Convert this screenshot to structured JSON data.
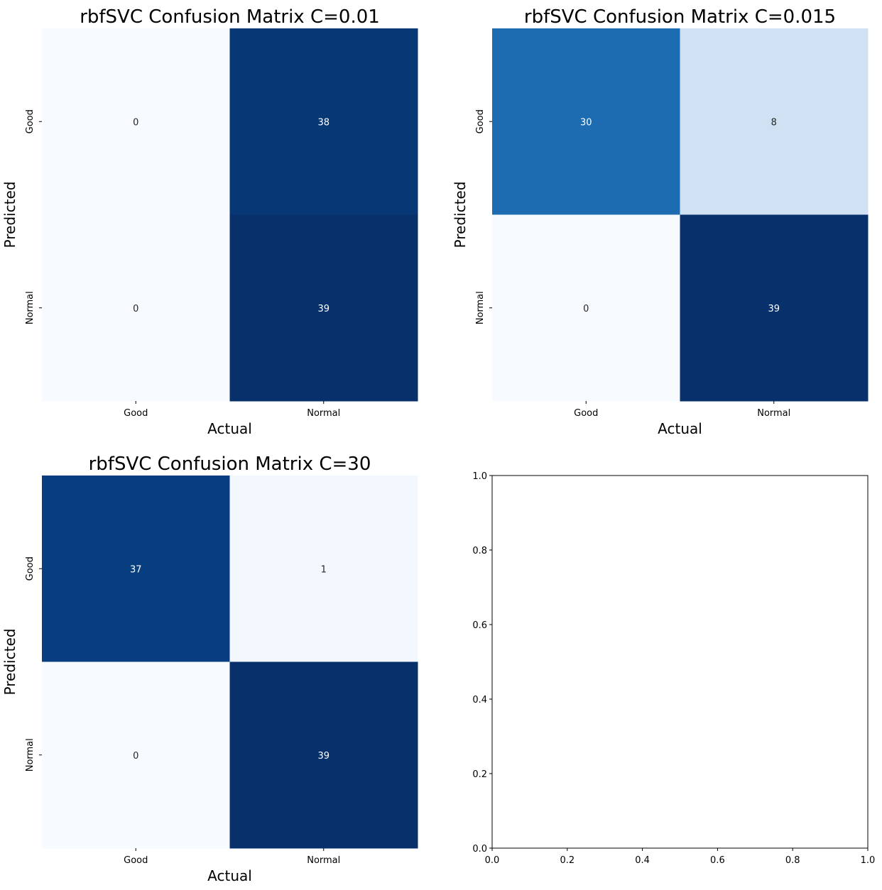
{
  "chart_data": [
    {
      "type": "heatmap",
      "title": "rbfSVC Confusion Matrix C=0.01",
      "xlabel": "Actual",
      "ylabel": "Predicted",
      "x_categories": [
        "Good",
        "Normal"
      ],
      "y_categories": [
        "Good",
        "Normal"
      ],
      "values": [
        [
          0,
          38
        ],
        [
          0,
          39
        ]
      ],
      "colormap": "Blues",
      "colorbar": false
    },
    {
      "type": "heatmap",
      "title": "rbfSVC Confusion Matrix C=0.015",
      "xlabel": "Actual",
      "ylabel": "Predicted",
      "x_categories": [
        "Good",
        "Normal"
      ],
      "y_categories": [
        "Good",
        "Normal"
      ],
      "values": [
        [
          30,
          8
        ],
        [
          0,
          39
        ]
      ],
      "colormap": "Blues",
      "colorbar": false
    },
    {
      "type": "heatmap",
      "title": "rbfSVC Confusion Matrix C=30",
      "xlabel": "Actual",
      "ylabel": "Predicted",
      "x_categories": [
        "Good",
        "Normal"
      ],
      "y_categories": [
        "Good",
        "Normal"
      ],
      "values": [
        [
          37,
          1
        ],
        [
          0,
          39
        ]
      ],
      "colormap": "Blues",
      "colorbar": false
    },
    {
      "type": "empty-axes",
      "title": "",
      "xlim": [
        0,
        1
      ],
      "ylim": [
        0,
        1
      ],
      "xticks": [
        "0.0",
        "0.2",
        "0.4",
        "0.6",
        "0.8",
        "1.0"
      ],
      "yticks": [
        "0.0",
        "0.2",
        "0.4",
        "0.6",
        "0.8",
        "1.0"
      ]
    }
  ],
  "colors": {
    "blues_min": "#f7fbff",
    "blues_max": "#08306b",
    "light_text": "#ffffff",
    "dark_text": "#262626"
  }
}
